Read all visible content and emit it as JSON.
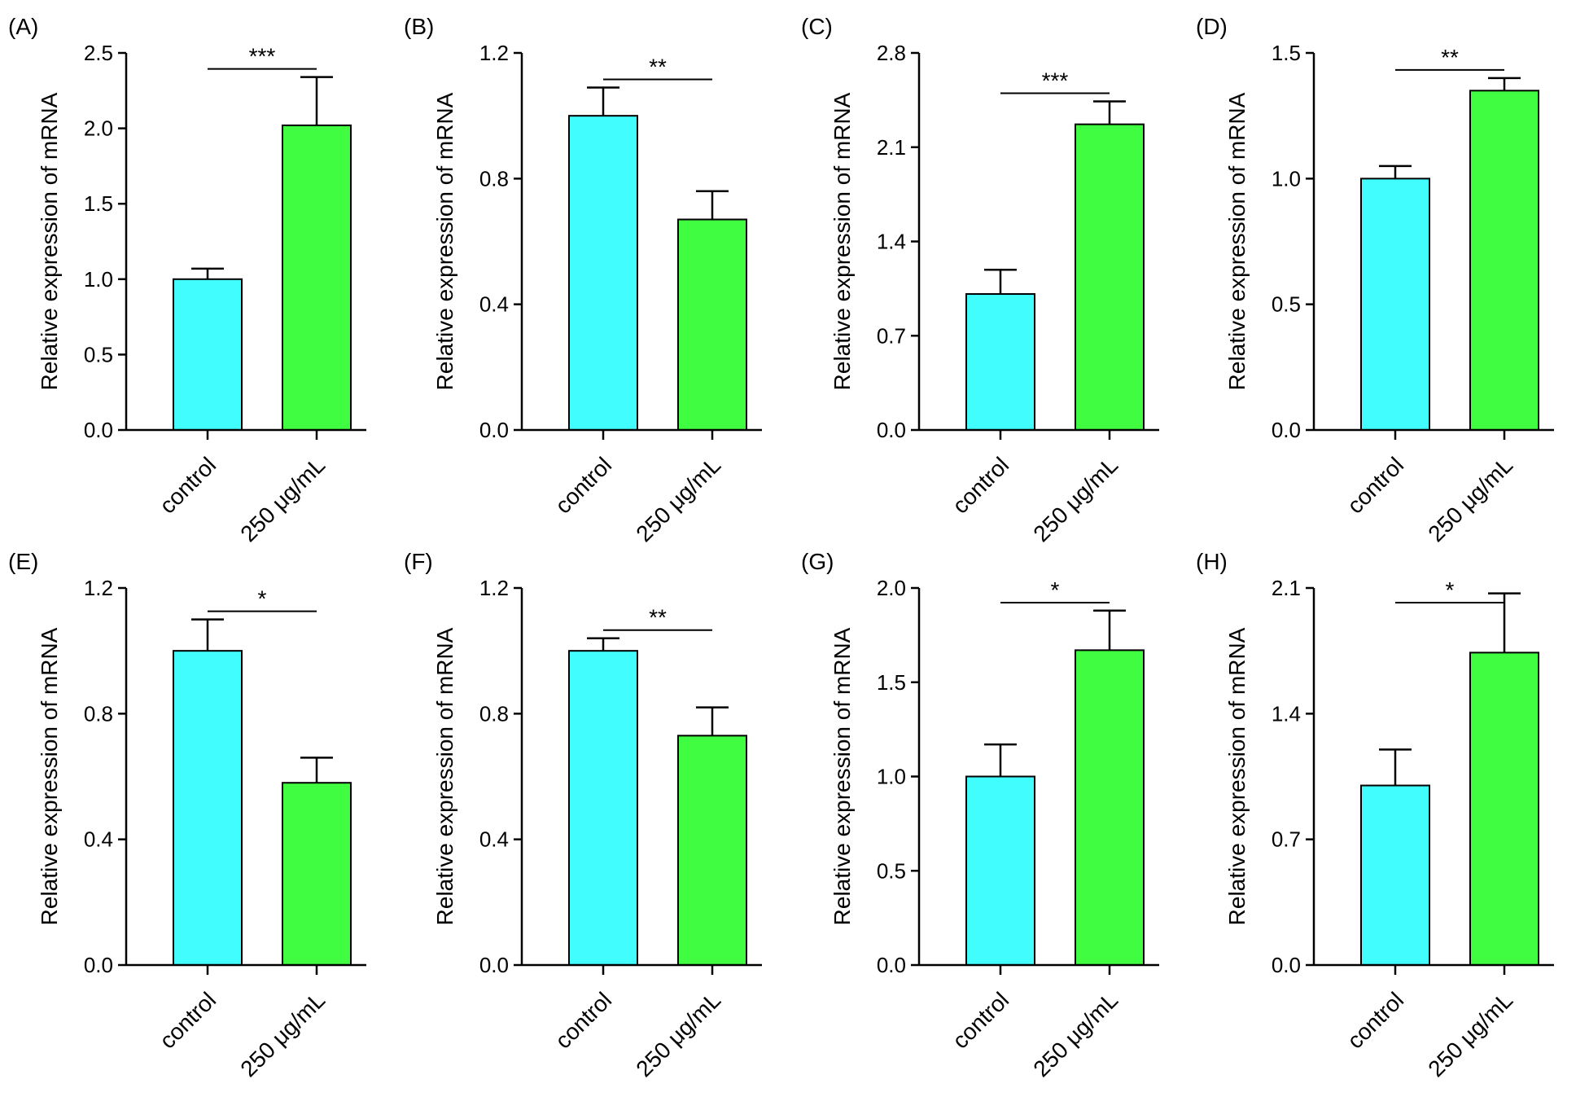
{
  "colors": {
    "control": "#41fdfd",
    "treatment": "#41fd41"
  },
  "chart_data": [
    {
      "type": "bar",
      "panel": "(A)",
      "ylabel": "Relative expression of mRNA",
      "categories": [
        "control",
        "250 μg/mL"
      ],
      "values": [
        1.0,
        2.02
      ],
      "errors": [
        0.07,
        0.32
      ],
      "ylim": [
        0,
        2.5
      ],
      "yticks": [
        "0.0",
        "0.5",
        "1.0",
        "1.5",
        "2.0",
        "2.5"
      ],
      "significance": "***"
    },
    {
      "type": "bar",
      "panel": "(B)",
      "ylabel": "Relative expression of mRNA",
      "categories": [
        "control",
        "250 μg/mL"
      ],
      "values": [
        1.0,
        0.67
      ],
      "errors": [
        0.09,
        0.09
      ],
      "ylim": [
        0,
        1.2
      ],
      "yticks": [
        "0.0",
        "0.4",
        "0.8",
        "1.2"
      ],
      "significance": "**"
    },
    {
      "type": "bar",
      "panel": "(C)",
      "ylabel": "Relative expression of mRNA",
      "categories": [
        "control",
        "250 μg/mL"
      ],
      "values": [
        1.01,
        2.27
      ],
      "errors": [
        0.18,
        0.17
      ],
      "ylim": [
        0,
        2.8
      ],
      "yticks": [
        "0.0",
        "0.7",
        "1.4",
        "2.1",
        "2.8"
      ],
      "significance": "***"
    },
    {
      "type": "bar",
      "panel": "(D)",
      "ylabel": "Relative expression of mRNA",
      "categories": [
        "control",
        "250 μg/mL"
      ],
      "values": [
        1.0,
        1.35
      ],
      "errors": [
        0.05,
        0.05
      ],
      "ylim": [
        0,
        1.5
      ],
      "yticks": [
        "0.0",
        "0.5",
        "1.0",
        "1.5"
      ],
      "significance": "**"
    },
    {
      "type": "bar",
      "panel": "(E)",
      "ylabel": "Relative expression of mRNA",
      "categories": [
        "control",
        "250 μg/mL"
      ],
      "values": [
        1.0,
        0.58
      ],
      "errors": [
        0.1,
        0.08
      ],
      "ylim": [
        0,
        1.2
      ],
      "yticks": [
        "0.0",
        "0.4",
        "0.8",
        "1.2"
      ],
      "significance": "*"
    },
    {
      "type": "bar",
      "panel": "(F)",
      "ylabel": "Relative expression of mRNA",
      "categories": [
        "control",
        "250 μg/mL"
      ],
      "values": [
        1.0,
        0.73
      ],
      "errors": [
        0.04,
        0.09
      ],
      "ylim": [
        0,
        1.2
      ],
      "yticks": [
        "0.0",
        "0.4",
        "0.8",
        "1.2"
      ],
      "significance": "**"
    },
    {
      "type": "bar",
      "panel": "(G)",
      "ylabel": "Relative expression of mRNA",
      "categories": [
        "control",
        "250 μg/mL"
      ],
      "values": [
        1.0,
        1.67
      ],
      "errors": [
        0.17,
        0.21
      ],
      "ylim": [
        0,
        2.0
      ],
      "yticks": [
        "0.0",
        "0.5",
        "1.0",
        "1.5",
        "2.0"
      ],
      "significance": "*"
    },
    {
      "type": "bar",
      "panel": "(H)",
      "ylabel": "Relative expression of mRNA",
      "categories": [
        "control",
        "250 μg/mL"
      ],
      "values": [
        1.0,
        1.74
      ],
      "errors": [
        0.2,
        0.33
      ],
      "ylim": [
        0,
        2.1
      ],
      "yticks": [
        "0.0",
        "0.7",
        "1.4",
        "2.1"
      ],
      "significance": "*"
    }
  ]
}
